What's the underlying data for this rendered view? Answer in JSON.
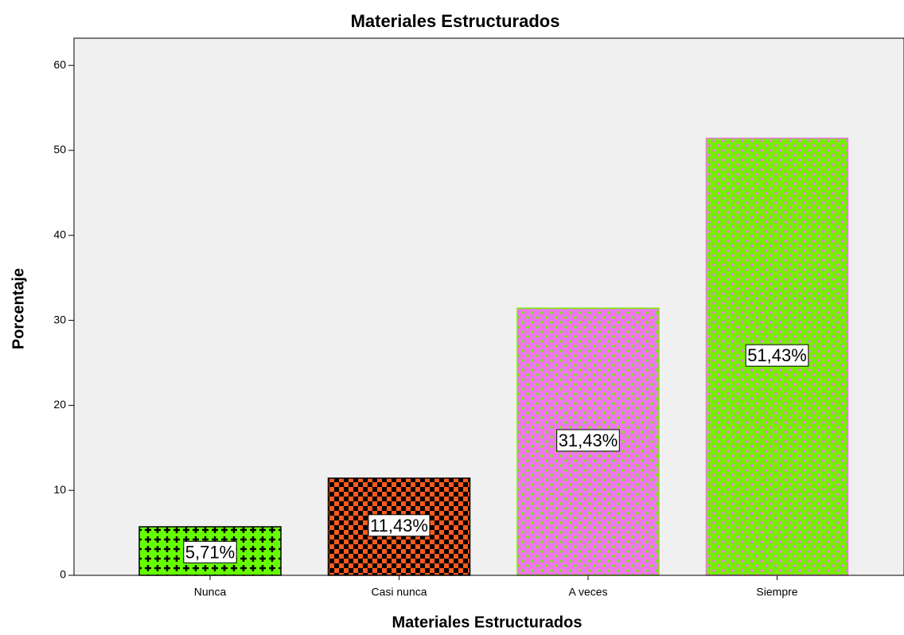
{
  "chart_data": {
    "type": "bar",
    "title": "Materiales Estructurados",
    "x_label": "Materiales Estructurados",
    "y_label": "Porcentaje",
    "categories": [
      "Nunca",
      "Casi nunca",
      "A veces",
      "Siempre"
    ],
    "values": [
      5.71,
      11.43,
      31.43,
      51.43
    ],
    "value_labels": [
      "5,71%",
      "11,43%",
      "31,43%",
      "51,43%"
    ],
    "colors": [
      "#66ff00",
      "#ff5a1e",
      "#ee77ee",
      "#77ee00"
    ],
    "pattern_colors": [
      "#000000",
      "#000000",
      "#77ee00",
      "#ee77ee"
    ],
    "ylim": [
      0,
      63.2
    ],
    "yticks": [
      0,
      10,
      20,
      30,
      40,
      50,
      60
    ],
    "grid": false
  }
}
